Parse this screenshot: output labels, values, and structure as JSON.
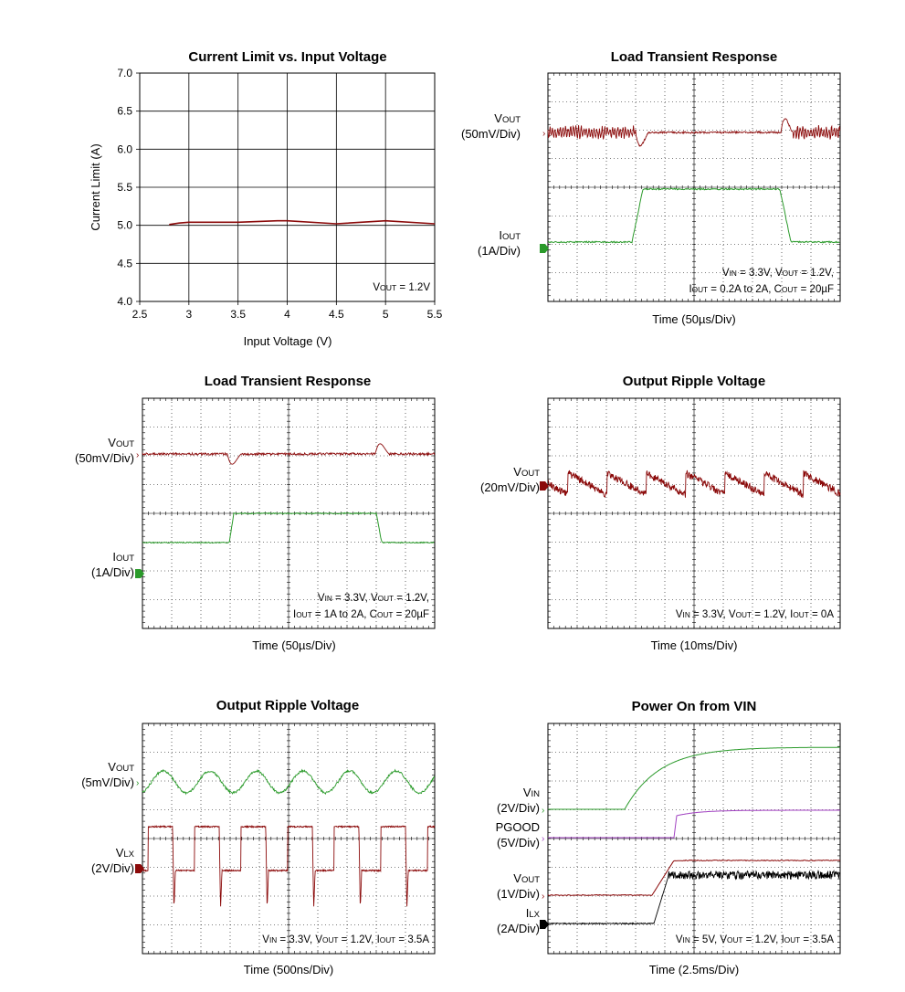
{
  "colors": {
    "dark_red": "#8b0a0a",
    "green": "#2a9a2a",
    "purple": "#a040c0",
    "black": "#000000"
  },
  "chart_data": [
    {
      "type": "line",
      "title": "Current Limit vs. Input Voltage",
      "xlabel": "Input Voltage (V)",
      "ylabel": "Current Limit (A)",
      "xlim": [
        2.5,
        5.5
      ],
      "ylim": [
        4.0,
        7.0
      ],
      "xticks": [
        "2.5",
        "3",
        "3.5",
        "4",
        "4.5",
        "5",
        "5.5"
      ],
      "yticks": [
        "7.0",
        "6.5",
        "6.0",
        "5.5",
        "5.0",
        "4.5",
        "4.0"
      ],
      "grid": true,
      "annotation": {
        "main": "V",
        "sub": "OUT",
        "rest": " = 1.2V"
      },
      "series": [
        {
          "x": [
            2.8,
            2.9,
            3.0,
            3.5,
            3.9,
            4.0,
            4.5,
            5.0,
            5.5
          ],
          "y": [
            5.01,
            5.03,
            5.04,
            5.04,
            5.06,
            5.06,
            5.02,
            5.06,
            5.02
          ]
        }
      ]
    },
    {
      "type": "line",
      "title": "Load Transient Response",
      "xlabel": "Time  (50µs/Div)",
      "grid": true,
      "channels": [
        {
          "main": "V",
          "sub": "OUT",
          "scale": "(50mV/Div)"
        },
        {
          "main": "I",
          "sub": "OUT",
          "scale": "(1A/Div)"
        }
      ],
      "annotation_lines": [
        [
          {
            "main": "V",
            "sub": "IN",
            "rest": " = 3.3V, "
          },
          {
            "main": "V",
            "sub": "OUT",
            "rest": " = 1.2V,"
          }
        ],
        [
          {
            "main": "I",
            "sub": "OUT",
            "rest": " = 0.2A to 2A, "
          },
          {
            "main": "C",
            "sub": "OUT",
            "rest": " = 20µF"
          }
        ]
      ]
    },
    {
      "type": "line",
      "title": "Load Transient Response",
      "xlabel": "Time  (50µs/Div)",
      "grid": true,
      "channels": [
        {
          "main": "V",
          "sub": "OUT",
          "scale": "(50mV/Div)"
        },
        {
          "main": "I",
          "sub": "OUT",
          "scale": "(1A/Div)"
        }
      ],
      "annotation_lines": [
        [
          {
            "main": "V",
            "sub": "IN",
            "rest": " = 3.3V, "
          },
          {
            "main": "V",
            "sub": "OUT",
            "rest": " = 1.2V,"
          }
        ],
        [
          {
            "main": "I",
            "sub": "OUT",
            "rest": " = 1A to 2A, "
          },
          {
            "main": "C",
            "sub": "OUT",
            "rest": " = 20µF"
          }
        ]
      ]
    },
    {
      "type": "line",
      "title": "Output Ripple Voltage",
      "xlabel": "Time  (10ms/Div)",
      "grid": true,
      "channels": [
        {
          "main": "V",
          "sub": "OUT",
          "scale": "(20mV/Div)"
        }
      ],
      "annotation_lines": [
        [
          {
            "main": "V",
            "sub": "IN",
            "rest": " = 3.3V, "
          },
          {
            "main": "V",
            "sub": "OUT",
            "rest": " = 1.2V, "
          },
          {
            "main": "I",
            "sub": "OUT",
            "rest": " = 0A"
          }
        ]
      ]
    },
    {
      "type": "line",
      "title": "Output Ripple Voltage",
      "xlabel": "Time  (500ns/Div)",
      "grid": true,
      "channels": [
        {
          "main": "V",
          "sub": "OUT",
          "scale": "(5mV/Div)"
        },
        {
          "main": "V",
          "sub": "LX",
          "scale": "(2V/Div)"
        }
      ],
      "annotation_lines": [
        [
          {
            "main": "V",
            "sub": "IN",
            "rest": " = 3.3V, "
          },
          {
            "main": "V",
            "sub": "OUT",
            "rest": " = 1.2V, "
          },
          {
            "main": "I",
            "sub": "OUT",
            "rest": " = 3.5A"
          }
        ]
      ]
    },
    {
      "type": "line",
      "title": "Power On from VIN",
      "xlabel": "Time  (2.5ms/Div)",
      "grid": true,
      "channels": [
        {
          "main": "V",
          "sub": "IN",
          "scale": "(2V/Div)"
        },
        {
          "main": "PGOOD",
          "sub": "",
          "scale": "(5V/Div)"
        },
        {
          "main": "V",
          "sub": "OUT",
          "scale": "(1V/Div)"
        },
        {
          "main": "I",
          "sub": "LX",
          "scale": "(2A/Div)"
        }
      ],
      "annotation_lines": [
        [
          {
            "main": "V",
            "sub": "IN",
            "rest": " = 5V, "
          },
          {
            "main": "V",
            "sub": "OUT",
            "rest": " = 1.2V, "
          },
          {
            "main": "I",
            "sub": "OUT",
            "rest": " = 3.5A"
          }
        ]
      ]
    }
  ]
}
